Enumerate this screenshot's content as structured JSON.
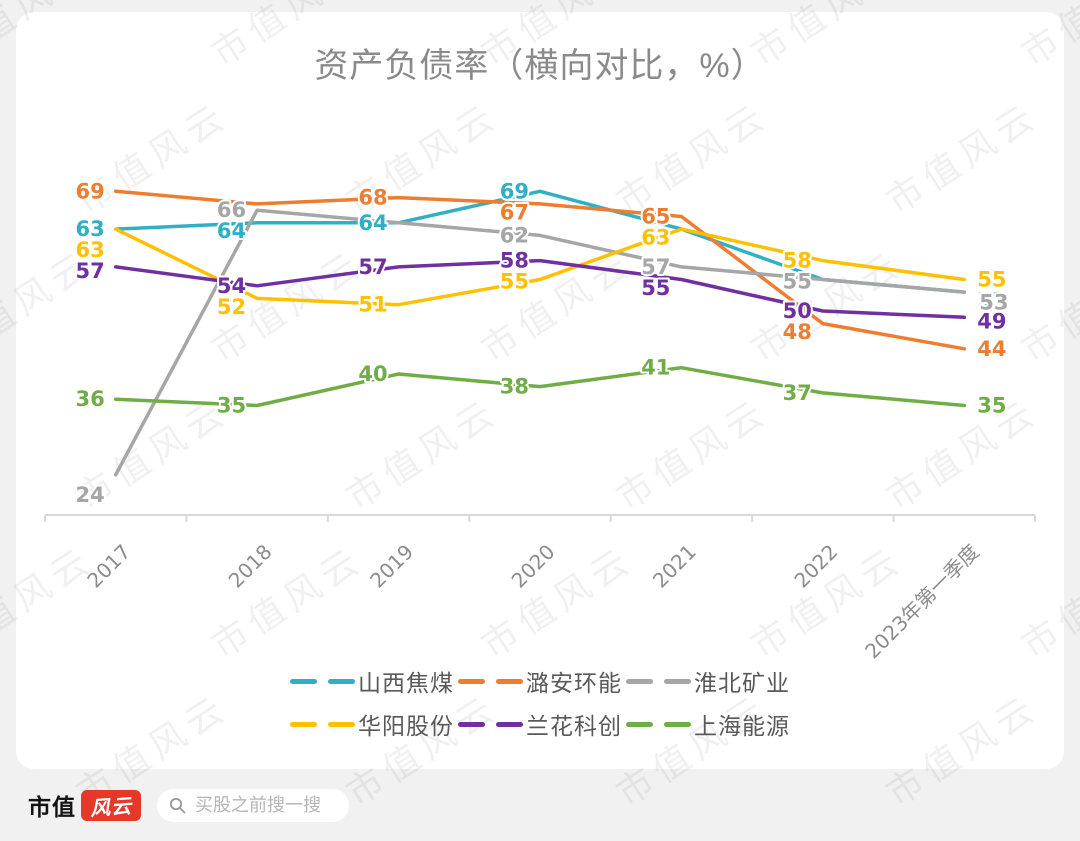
{
  "watermark": {
    "text": "市值风云"
  },
  "chart_data": {
    "type": "line",
    "title": "资产负债率（横向对比，%）",
    "xlabel": "",
    "ylabel": "",
    "ylim": [
      17,
      70
    ],
    "grid": false,
    "legend_position": "bottom",
    "categories": [
      "2017",
      "2018",
      "2019",
      "2020",
      "2021",
      "2022",
      "2023年第一季度"
    ],
    "series": [
      {
        "name": "山西焦煤",
        "color": "#31B0C5",
        "values": [
          63,
          64,
          64,
          69,
          63,
          55,
          53
        ],
        "hidden_labels": [
          4,
          5
        ]
      },
      {
        "name": "潞安环能",
        "color": "#ED7D31",
        "values": [
          69,
          67,
          68,
          67,
          65,
          48,
          44
        ],
        "hidden_labels": [
          1
        ]
      },
      {
        "name": "淮北矿业",
        "color": "#A6A6A6",
        "values": [
          24,
          66,
          64,
          62,
          57,
          55,
          53
        ],
        "hidden_labels": [
          2
        ]
      },
      {
        "name": "华阳股份",
        "color": "#FFC000",
        "values": [
          63,
          52,
          51,
          55,
          63,
          58,
          55
        ],
        "hidden_labels": []
      },
      {
        "name": "兰花科创",
        "color": "#7030A0",
        "values": [
          57,
          54,
          57,
          58,
          55,
          50,
          49
        ],
        "hidden_labels": []
      },
      {
        "name": "上海能源",
        "color": "#70AD47",
        "values": [
          36,
          35,
          40,
          38,
          41,
          37,
          35
        ],
        "hidden_labels": []
      }
    ],
    "axis_color": "#D9D9D9",
    "tick_label_color": "#8C8C8C"
  },
  "brand": {
    "name": "市值",
    "logo_text": "风云"
  },
  "search": {
    "placeholder": "买股之前搜一搜"
  }
}
